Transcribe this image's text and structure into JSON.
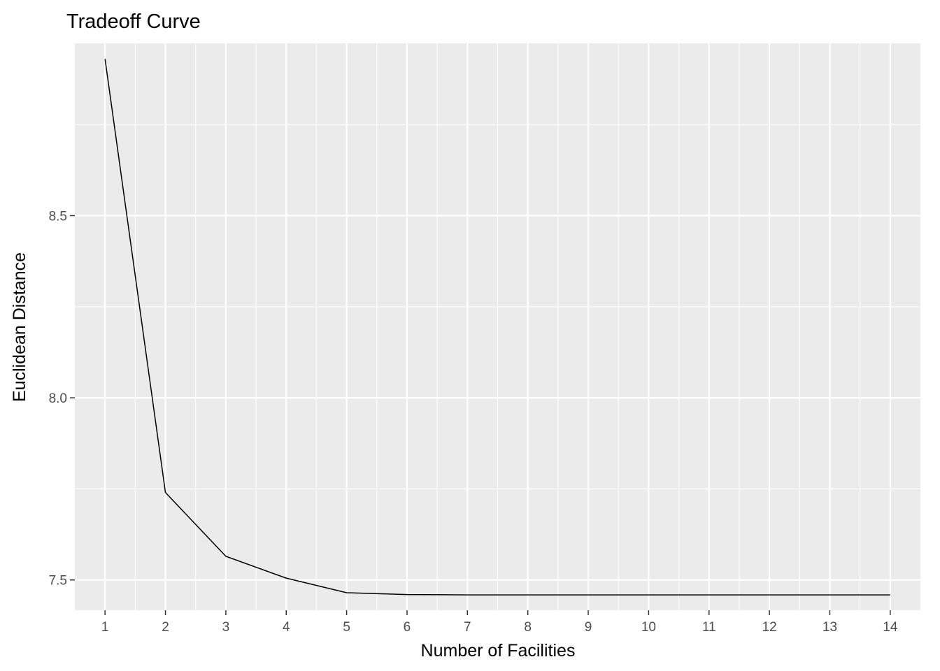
{
  "chart_data": {
    "type": "line",
    "title": "Tradeoff Curve",
    "xlabel": "Number of Facilities",
    "ylabel": "Euclidean Distance",
    "x": [
      1,
      2,
      3,
      4,
      5,
      6,
      7,
      8,
      9,
      10,
      11,
      12,
      13,
      14
    ],
    "series": [
      {
        "values": [
          8.93,
          7.74,
          7.565,
          7.505,
          7.465,
          7.46,
          7.459,
          7.459,
          7.459,
          7.459,
          7.459,
          7.459,
          7.459,
          7.459
        ]
      }
    ],
    "xticks": [
      "1",
      "2",
      "3",
      "4",
      "5",
      "6",
      "7",
      "8",
      "9",
      "10",
      "11",
      "12",
      "13",
      "14"
    ],
    "yticks": [
      "7.5",
      "8.0",
      "8.5"
    ],
    "xlim": [
      0.5,
      14.5
    ],
    "ylim": [
      7.417,
      8.973
    ],
    "grid": true,
    "colors": {
      "panel": "#ebebeb",
      "grid": "#ffffff",
      "line": "#000000",
      "tick": "#333333"
    }
  }
}
